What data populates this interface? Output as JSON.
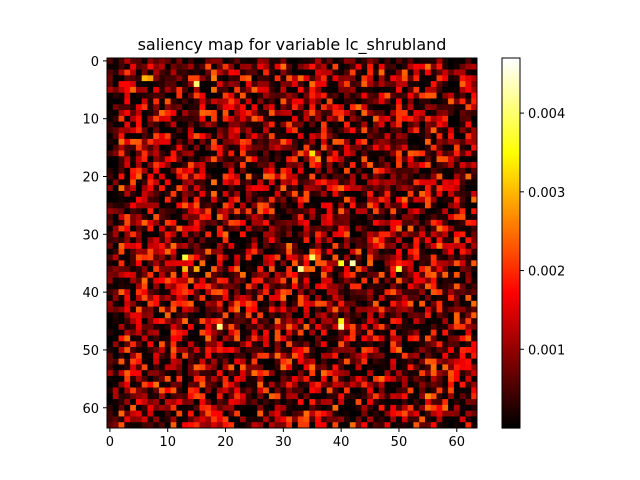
{
  "chart_data": {
    "type": "heatmap",
    "title": "saliency map for variable lc_shrubland",
    "xlabel": "",
    "ylabel": "",
    "colormap": "hot",
    "rows": 64,
    "cols": 64,
    "xlim": [
      -0.5,
      63.5
    ],
    "ylim": [
      63.5,
      -0.5
    ],
    "x_ticks": [
      0,
      10,
      20,
      30,
      40,
      50,
      60
    ],
    "y_ticks": [
      0,
      10,
      20,
      30,
      40,
      50,
      60
    ],
    "x_tick_labels": [
      "0",
      "10",
      "20",
      "30",
      "40",
      "50",
      "60"
    ],
    "y_tick_labels": [
      "0",
      "10",
      "20",
      "30",
      "40",
      "50",
      "60"
    ],
    "value_range": [
      0.0,
      0.0047
    ],
    "typical_value_range": [
      0.0,
      0.0025
    ],
    "hotspots": [
      {
        "row": 3,
        "col": 6,
        "value": 0.003
      },
      {
        "row": 3,
        "col": 7,
        "value": 0.0028
      },
      {
        "row": 4,
        "col": 15,
        "value": 0.004
      },
      {
        "row": 3,
        "col": 18,
        "value": 0.0026
      },
      {
        "row": 16,
        "col": 35,
        "value": 0.0033
      },
      {
        "row": 17,
        "col": 36,
        "value": 0.0028
      },
      {
        "row": 34,
        "col": 13,
        "value": 0.0038
      },
      {
        "row": 36,
        "col": 13,
        "value": 0.003
      },
      {
        "row": 36,
        "col": 15,
        "value": 0.0029
      },
      {
        "row": 34,
        "col": 35,
        "value": 0.004
      },
      {
        "row": 36,
        "col": 33,
        "value": 0.0042
      },
      {
        "row": 35,
        "col": 40,
        "value": 0.0036
      },
      {
        "row": 35,
        "col": 42,
        "value": 0.0043
      },
      {
        "row": 36,
        "col": 50,
        "value": 0.0038
      },
      {
        "row": 46,
        "col": 19,
        "value": 0.0041
      },
      {
        "row": 46,
        "col": 40,
        "value": 0.0042
      },
      {
        "row": 45,
        "col": 40,
        "value": 0.0034
      },
      {
        "row": 58,
        "col": 55,
        "value": 0.0027
      }
    ],
    "colorbar": {
      "range": [
        0.0,
        0.0047
      ],
      "ticks": [
        0.001,
        0.002,
        0.003,
        0.004
      ],
      "tick_labels": [
        "0.001",
        "0.002",
        "0.003",
        "0.004"
      ]
    }
  }
}
